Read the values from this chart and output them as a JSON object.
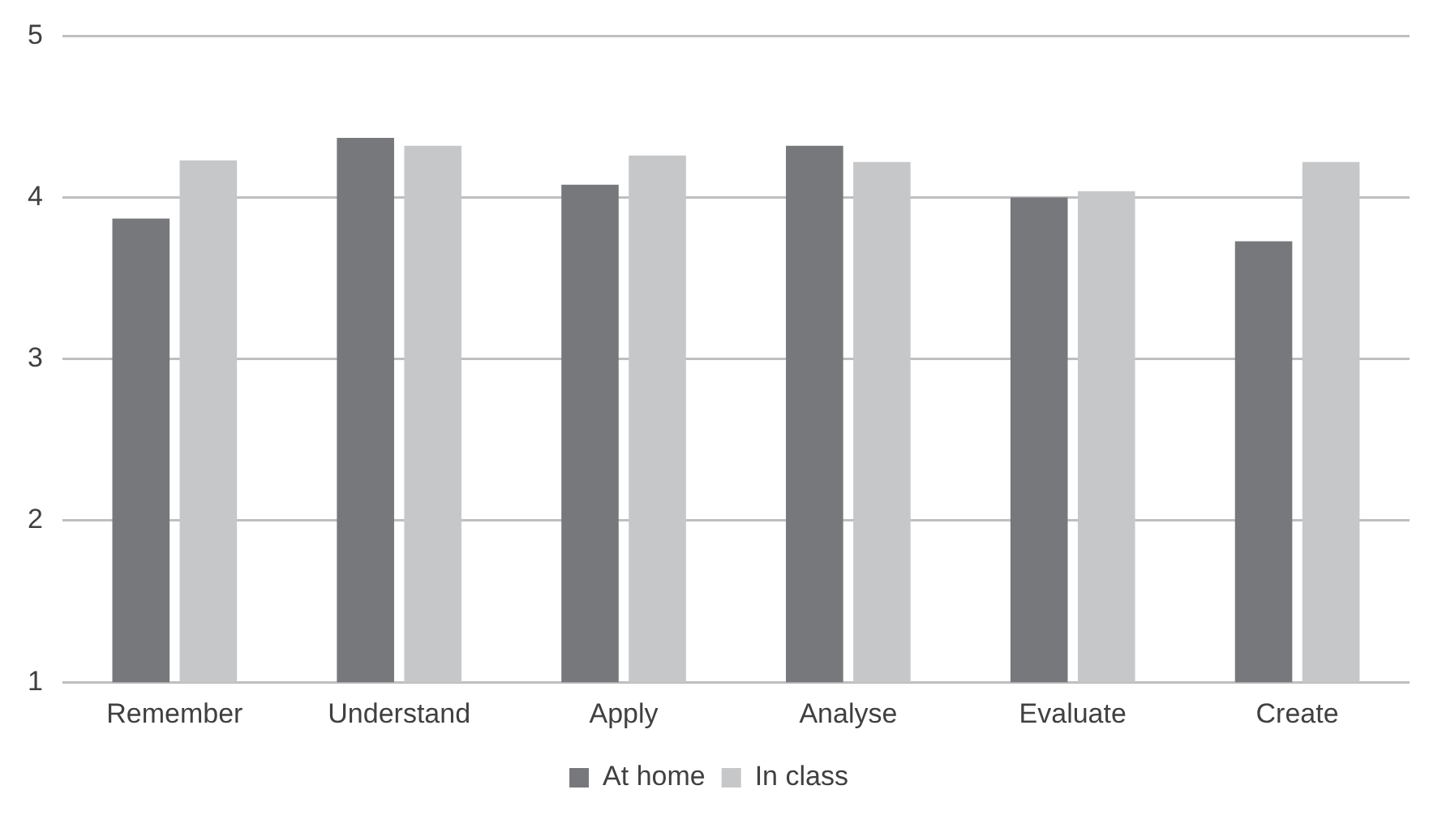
{
  "chart_data": {
    "type": "bar",
    "categories": [
      "Remember",
      "Understand",
      "Apply",
      "Analyse",
      "Evaluate",
      "Create"
    ],
    "series": [
      {
        "name": "At home",
        "color": "#77787b",
        "values": [
          3.87,
          4.37,
          4.08,
          4.32,
          4.0,
          3.73
        ]
      },
      {
        "name": "In class",
        "color": "#c6c7c9",
        "values": [
          4.23,
          4.32,
          4.26,
          4.22,
          4.04,
          4.22
        ]
      }
    ],
    "ylim": [
      1,
      5
    ],
    "yticks": [
      1,
      2,
      3,
      4,
      5
    ],
    "grid": "y",
    "legend": "bottom"
  }
}
